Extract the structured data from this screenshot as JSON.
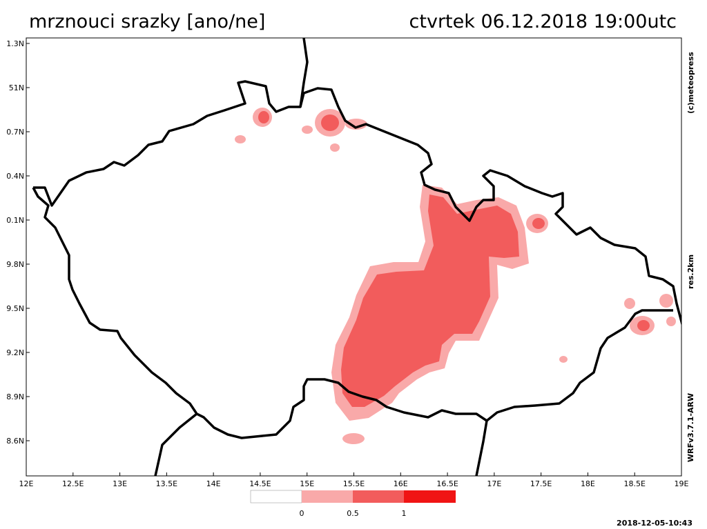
{
  "header": {
    "title": "mrznouci srazky [ano/ne]",
    "valid_time": "ctvrtek 06.12.2018 19:00utc"
  },
  "map": {
    "lat_labels": [
      "1.3N",
      "51N",
      "0.7N",
      "0.4N",
      "0.1N",
      "9.8N",
      "9.5N",
      "9.2N",
      "8.9N",
      "8.6N"
    ],
    "lon_labels": [
      "12E",
      "12.5E",
      "13E",
      "13.5E",
      "14E",
      "14.5E",
      "15E",
      "15.5E",
      "16E",
      "16.5E",
      "17E",
      "17.5E",
      "18E",
      "18.5E",
      "19E"
    ]
  },
  "legend": {
    "labels": [
      "0",
      "0.5",
      "1"
    ]
  },
  "side": {
    "credit": "(c)meteopress",
    "resolution": "res.2km",
    "model": "WRFv3.7.1-ARW"
  },
  "footer": {
    "run_time": "2018-12-05-10:43"
  }
}
